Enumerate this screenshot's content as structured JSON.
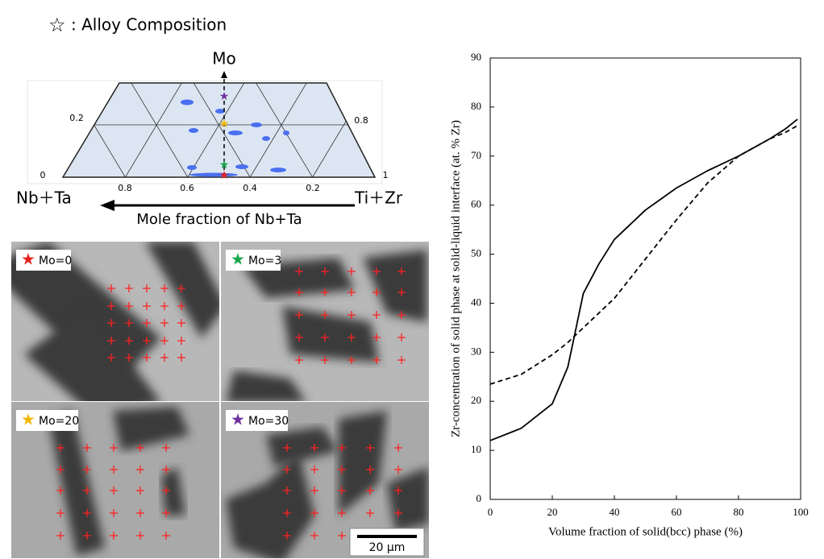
{
  "legend": {
    "symbol": "☆",
    "text": ": Alloy Composition"
  },
  "ternary": {
    "apex": "Mo",
    "left_label": "Nb＋Ta",
    "right_label": "Ti＋Zr",
    "axis_title": "Mole fraction of Nb+Ta",
    "left_ticks": [
      "0",
      "0.2"
    ],
    "right_ticks": [
      "1",
      "0.8"
    ],
    "bottom_ticks": [
      "0.8",
      "0.6",
      "0.4",
      "0.2"
    ]
  },
  "micrographs": [
    {
      "label": "Mo=0",
      "star_color": "#e8201c"
    },
    {
      "label": "Mo=3",
      "star_color": "#1aa64a"
    },
    {
      "label": "Mo=20",
      "star_color": "#f2b705"
    },
    {
      "label": "Mo=30",
      "star_color": "#7030a0"
    }
  ],
  "scale_bar": "20 µm",
  "chart_data": {
    "type": "line",
    "x_label": "Volume fraction of solid(bcc) phase (%)",
    "y_label": "Zr-concentration of solid phase at solid-liquid interface (at. % Zr)",
    "x": [
      0,
      10,
      20,
      25,
      27,
      30,
      35,
      40,
      50,
      60,
      70,
      80,
      90,
      95,
      99
    ],
    "series": [
      {
        "color": "#000000",
        "style": "solid",
        "values": [
          12,
          14.5,
          19.5,
          27,
          33,
          42,
          48,
          53,
          59,
          63.5,
          67,
          70,
          73.5,
          75.5,
          77.5
        ]
      },
      {
        "color": "#000000",
        "style": "dashed",
        "values": [
          23.5,
          25.5,
          29.5,
          32,
          33.2,
          35,
          38,
          41,
          49,
          57,
          64.5,
          70,
          73.5,
          74.8,
          76.2
        ]
      }
    ],
    "xlim": [
      0,
      100
    ],
    "ylim": [
      0,
      90
    ],
    "xticks": [
      0,
      20,
      40,
      60,
      80,
      100
    ],
    "yticks": [
      0,
      10,
      20,
      30,
      40,
      50,
      60,
      70,
      80,
      90
    ]
  }
}
